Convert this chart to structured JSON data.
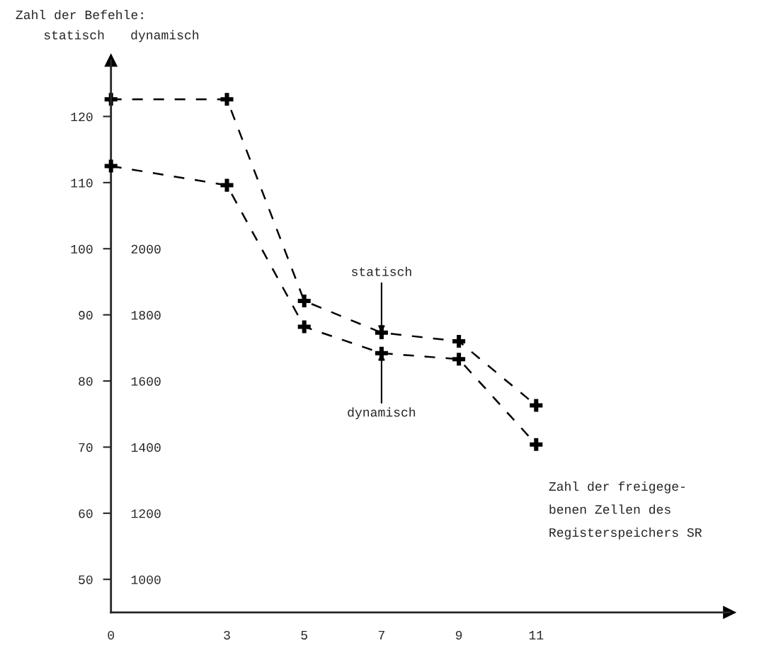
{
  "chart_data": {
    "type": "line",
    "title": "Zahl der Befehle:",
    "ylabel": "statisch",
    "y2label": "dynamisch",
    "xlabel": "Zahl der freigege-\nbenen Zellen des\nRegisterspeichers SR",
    "x": [
      0,
      3,
      5,
      7,
      9,
      11
    ],
    "series": [
      {
        "color": "#000000",
        "values": [
          122.6,
          122.6,
          92.1,
          87.3,
          86.0,
          76.3
        ]
      },
      {
        "color": "#000000",
        "axis": "y2",
        "values": [
          2250,
          2192,
          1764,
          1684,
          1666,
          1408
        ]
      }
    ],
    "xlim": [
      0,
      16
    ],
    "xticks": [
      0,
      3,
      5,
      7,
      9,
      11
    ],
    "ylim": [
      45,
      128.5
    ],
    "yticks": [
      50,
      60,
      70,
      80,
      90,
      100,
      110,
      120
    ],
    "y2lim": [
      900,
      2570
    ],
    "y2ticks": [
      1000,
      1200,
      1400,
      1600,
      1800,
      2000
    ],
    "annotations": [
      {
        "text": "statisch",
        "x": 7,
        "y": 87.3
      },
      {
        "text": "dynamisch",
        "x": 7,
        "y": 84.2
      }
    ],
    "marker": "cross",
    "line_style": "dashed",
    "grid": false,
    "legend": false
  }
}
